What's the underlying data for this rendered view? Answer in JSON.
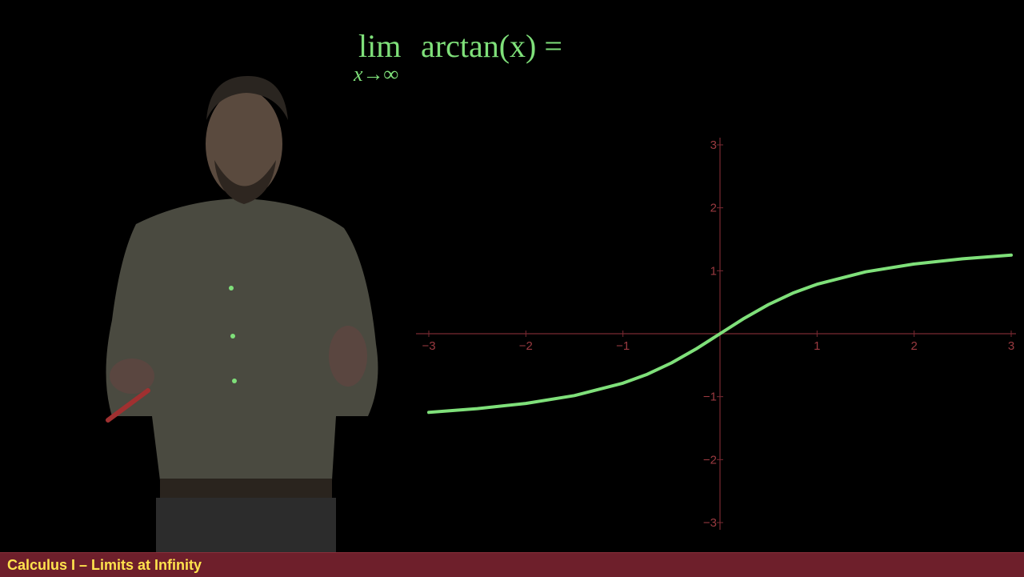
{
  "equation": {
    "lim": "lim",
    "subscript": "x→∞",
    "expression": "arctan(x) ="
  },
  "footer": {
    "title": "Calculus I – Limits at Infinity"
  },
  "colors": {
    "curve": "#7fe07a",
    "axes": "#7a2a32",
    "tick_labels": "#9a3a40",
    "title_bar": "#6e1f2b",
    "title_text": "#ffe34d"
  },
  "chart_data": {
    "type": "line",
    "function": "arctan(x)",
    "xlim": [
      -3,
      3
    ],
    "ylim": [
      -3,
      3
    ],
    "x_ticks": [
      -3,
      -2,
      -1,
      1,
      2,
      3
    ],
    "y_ticks": [
      -3,
      -2,
      -1,
      1,
      2,
      3
    ],
    "x_tick_labels": [
      "−3",
      "−2",
      "−1",
      "1",
      "2",
      "3"
    ],
    "y_tick_labels": [
      "−3",
      "−2",
      "−1",
      "1",
      "2",
      "3"
    ],
    "grid": false,
    "series": [
      {
        "x": [
          -3,
          -2.5,
          -2,
          -1.5,
          -1,
          -0.75,
          -0.5,
          -0.25,
          0,
          0.25,
          0.5,
          0.75,
          1,
          1.5,
          2,
          2.5,
          3
        ],
        "y": [
          -1.249,
          -1.19,
          -1.107,
          -0.983,
          -0.785,
          -0.644,
          -0.464,
          -0.245,
          0,
          0.245,
          0.464,
          0.644,
          0.785,
          0.983,
          1.107,
          1.19,
          1.249
        ]
      }
    ]
  }
}
